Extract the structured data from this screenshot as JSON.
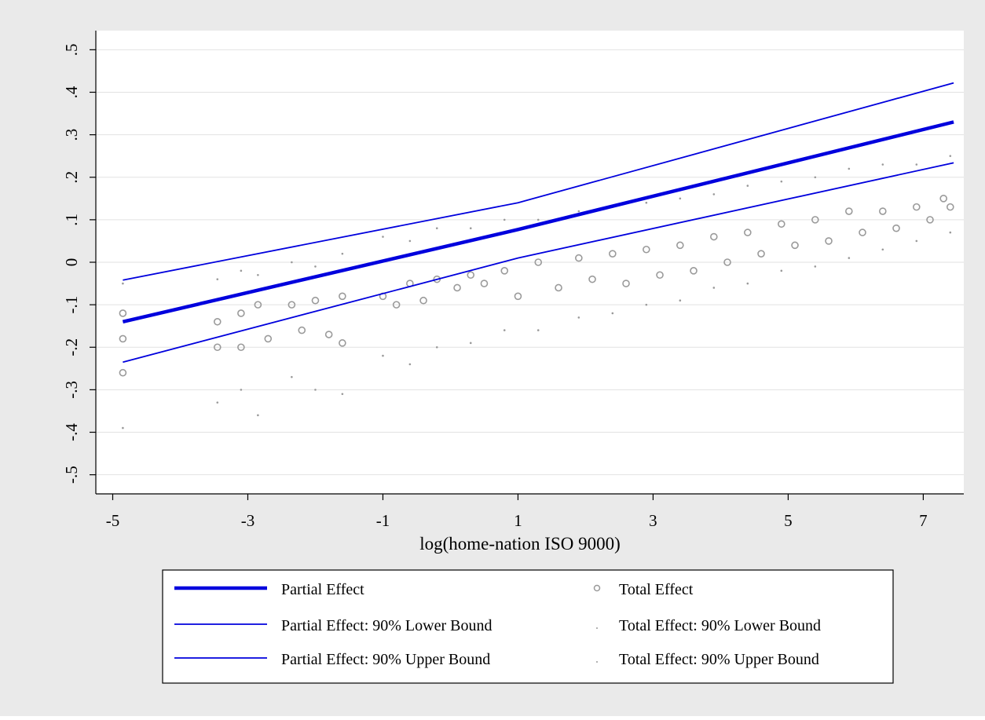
{
  "chart_data": {
    "type": "scatter",
    "title": "",
    "xlabel": "log(home-nation ISO 9000)",
    "ylabel": "",
    "xlim": [
      -5.25,
      7.6
    ],
    "ylim": [
      -0.545,
      0.545
    ],
    "x_ticks": [
      -5,
      -3,
      -1,
      1,
      3,
      5,
      7
    ],
    "x_tick_labels": [
      "-5",
      "-3",
      "-1",
      "1",
      "3",
      "5",
      "7"
    ],
    "y_ticks": [
      -0.5,
      -0.4,
      -0.3,
      -0.2,
      -0.1,
      0,
      0.1,
      0.2,
      0.3,
      0.4,
      0.5
    ],
    "y_tick_labels": [
      "-.5",
      "-.4",
      "-.3",
      "-.2",
      "-.1",
      "0",
      ".1",
      ".2",
      ".3",
      ".4",
      ".5"
    ],
    "grid": "horizontal",
    "legend_placement": "bottom",
    "colors": {
      "outer_background": "#eaeaea",
      "plot_background": "#ffffff",
      "line_color": "#0000dd",
      "marker_color": "#9a9a9a",
      "grid_color": "#e2e2e2"
    },
    "series": [
      {
        "name": "Partial Effect",
        "style": "thick-line",
        "x": [
          -4.85,
          1.0,
          7.45
        ],
        "y": [
          -0.14,
          0.077,
          0.33
        ]
      },
      {
        "name": "Partial Effect: 90% Lower Bound",
        "style": "line",
        "x": [
          -4.85,
          1.0,
          7.45
        ],
        "y": [
          -0.235,
          0.01,
          0.234
        ]
      },
      {
        "name": "Partial Effect: 90% Upper Bound",
        "style": "line",
        "x": [
          -4.85,
          1.0,
          7.45
        ],
        "y": [
          -0.042,
          0.14,
          0.422
        ]
      },
      {
        "name": "Total Effect",
        "style": "hollow-circle",
        "x": [
          -4.85,
          -4.85,
          -4.85,
          -3.45,
          -3.45,
          -3.1,
          -3.1,
          -2.85,
          -2.7,
          -2.35,
          -2.2,
          -2.0,
          -1.8,
          -1.6,
          -1.6,
          -1.0,
          -0.8,
          -0.6,
          -0.4,
          -0.2,
          0.1,
          0.3,
          0.5,
          0.8,
          1.0,
          1.3,
          1.6,
          1.9,
          2.1,
          2.4,
          2.6,
          2.9,
          3.1,
          3.4,
          3.6,
          3.9,
          4.1,
          4.4,
          4.6,
          4.9,
          5.1,
          5.4,
          5.6,
          5.9,
          6.1,
          6.4,
          6.6,
          6.9,
          7.1,
          7.3,
          7.4
        ],
        "y": [
          -0.12,
          -0.18,
          -0.26,
          -0.14,
          -0.2,
          -0.12,
          -0.2,
          -0.1,
          -0.18,
          -0.1,
          -0.16,
          -0.09,
          -0.17,
          -0.08,
          -0.19,
          -0.08,
          -0.1,
          -0.05,
          -0.09,
          -0.04,
          -0.06,
          -0.03,
          -0.05,
          -0.02,
          -0.08,
          0.0,
          -0.06,
          0.01,
          -0.04,
          0.02,
          -0.05,
          0.03,
          -0.03,
          0.04,
          -0.02,
          0.06,
          0.0,
          0.07,
          0.02,
          0.09,
          0.04,
          0.1,
          0.05,
          0.12,
          0.07,
          0.12,
          0.08,
          0.13,
          0.1,
          0.15,
          0.13
        ]
      },
      {
        "name": "Total Effect: 90% Lower Bound",
        "style": "small-dot",
        "x": [
          -4.85,
          -3.45,
          -3.1,
          -2.85,
          -2.35,
          -2.0,
          -1.6,
          -1.0,
          -0.6,
          -0.2,
          0.3,
          0.8,
          1.3,
          1.9,
          2.4,
          2.9,
          3.4,
          3.9,
          4.4,
          4.9,
          5.4,
          5.9,
          6.4,
          6.9,
          7.4
        ],
        "y": [
          -0.39,
          -0.33,
          -0.3,
          -0.36,
          -0.27,
          -0.3,
          -0.31,
          -0.22,
          -0.24,
          -0.2,
          -0.19,
          -0.16,
          -0.16,
          -0.13,
          -0.12,
          -0.1,
          -0.09,
          -0.06,
          -0.05,
          -0.02,
          -0.01,
          0.01,
          0.03,
          0.05,
          0.07
        ]
      },
      {
        "name": "Total Effect: 90% Upper Bound",
        "style": "small-dot",
        "x": [
          -4.85,
          -3.45,
          -3.1,
          -2.85,
          -2.35,
          -2.0,
          -1.6,
          -1.0,
          -0.6,
          -0.2,
          0.3,
          0.8,
          1.3,
          1.9,
          2.4,
          2.9,
          3.4,
          3.9,
          4.4,
          4.9,
          5.4,
          5.9,
          6.4,
          6.9,
          7.4
        ],
        "y": [
          -0.05,
          -0.04,
          -0.02,
          -0.03,
          0.0,
          -0.01,
          0.02,
          0.06,
          0.05,
          0.08,
          0.08,
          0.1,
          0.1,
          0.12,
          0.13,
          0.14,
          0.15,
          0.16,
          0.18,
          0.19,
          0.2,
          0.22,
          0.23,
          0.23,
          0.25
        ]
      }
    ]
  }
}
